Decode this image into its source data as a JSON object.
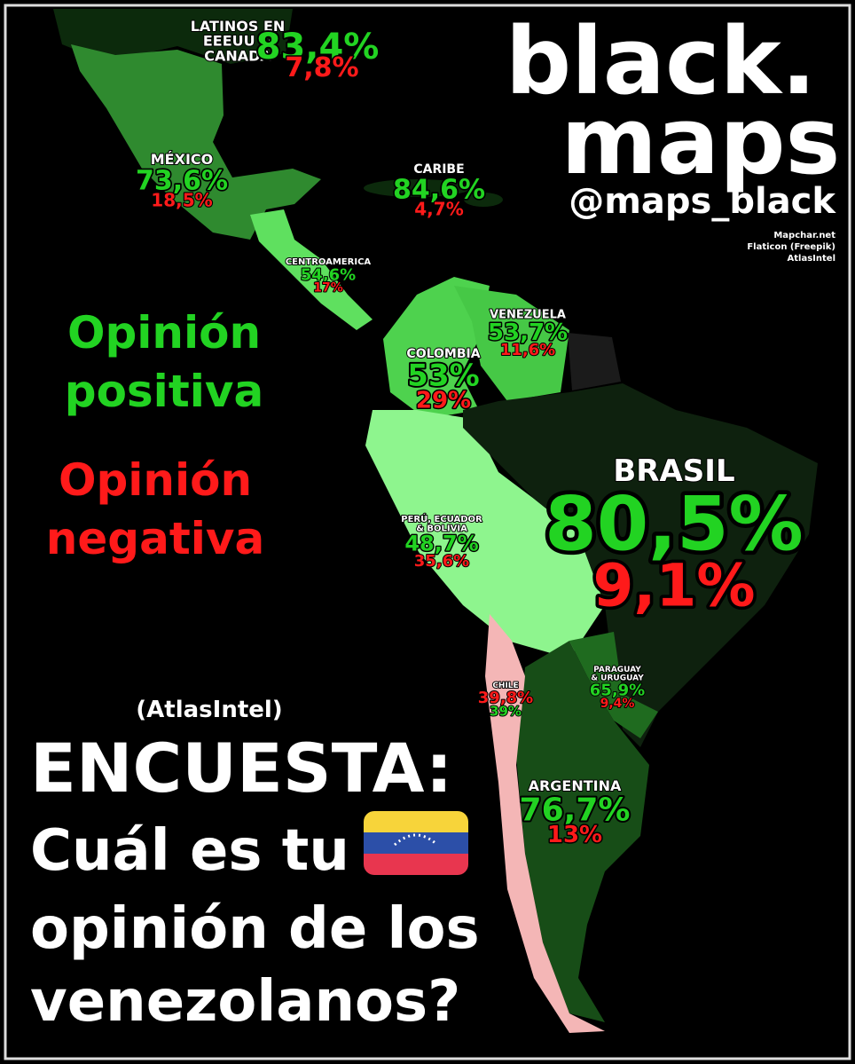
{
  "brand": {
    "line1": "black.",
    "line2": "maps",
    "handle": "@maps_black",
    "sources": [
      "Mapchar.net",
      "Flaticon (Freepik)",
      "AtlasIntel"
    ]
  },
  "legend": {
    "positive": [
      "Opinión",
      "positiva"
    ],
    "negative": [
      "Opinión",
      "negativa"
    ]
  },
  "survey": {
    "source": "(AtlasIntel)",
    "title": "ENCUESTA:",
    "question": [
      "Cuál es tu",
      "opinión de los",
      "venezolanos?"
    ]
  },
  "regions": [
    {
      "name": [
        "LATINOS EN",
        "EEEUU &",
        "CANADÁ"
      ],
      "positive": "83,4%",
      "negative": "7,8%"
    },
    {
      "name": [
        "MÉXICO"
      ],
      "positive": "73,6%",
      "negative": "18,5%"
    },
    {
      "name": [
        "CARIBE"
      ],
      "positive": "84,6%",
      "negative": "4,7%"
    },
    {
      "name": [
        "CENTROAMERICA"
      ],
      "positive": "54,6%",
      "negative": "17%"
    },
    {
      "name": [
        "VENEZUELA"
      ],
      "positive": "53,7%",
      "negative": "11,6%"
    },
    {
      "name": [
        "COLOMBIA"
      ],
      "positive": "53%",
      "negative": "29%"
    },
    {
      "name": [
        "BRASIL"
      ],
      "positive": "80,5%",
      "negative": "9,1%"
    },
    {
      "name": [
        "PERÚ, ECUADOR",
        "& BOLIVIA"
      ],
      "positive": "48,7%",
      "negative": "35,6%"
    },
    {
      "name": [
        "PARAGUAY",
        "& URUGUAY"
      ],
      "positive": "65,9%",
      "negative": "9,4%"
    },
    {
      "name": [
        "CHILE"
      ],
      "negative": "39,8%",
      "positive": "39%"
    },
    {
      "name": [
        "ARGENTINA"
      ],
      "positive": "76,7%",
      "negative": "13%"
    }
  ]
}
